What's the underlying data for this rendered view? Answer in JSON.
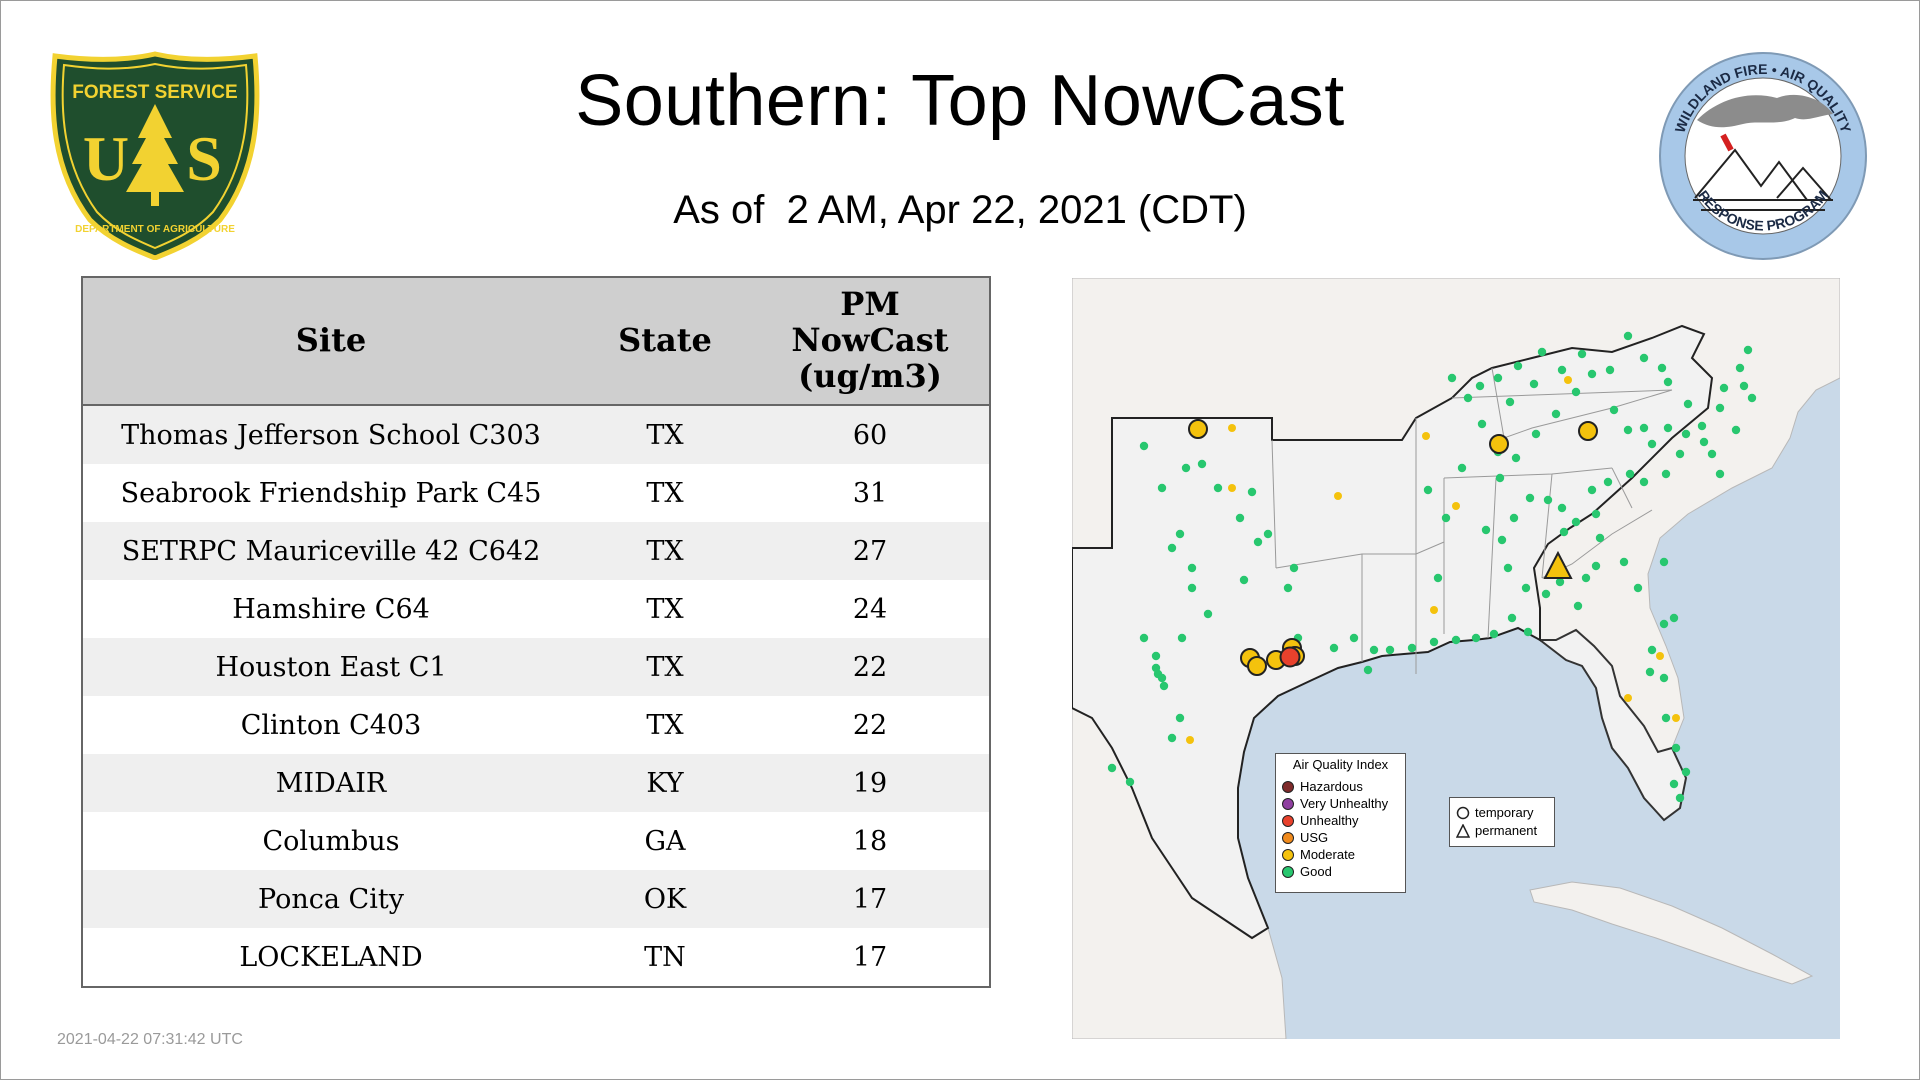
{
  "header": {
    "title": "Southern: Top NowCast",
    "subtitle": "As of  2 AM, Apr 22, 2021 (CDT)"
  },
  "logos": {
    "forest_service": {
      "top_text": "FOREST SERVICE",
      "letters": "US",
      "bottom_text": "DEPARTMENT OF AGRICULTURE",
      "colors": {
        "field": "#1f4e2d",
        "trim": "#f2d231"
      }
    },
    "wildland_fire": {
      "top_text": "WILDLAND FIRE • AIR QUALITY",
      "bottom_text": "RESPONSE PROGRAM",
      "colors": {
        "ring": "#a8c8e8",
        "smoke": "#8c8c8c",
        "flag": "#d42020"
      }
    }
  },
  "table": {
    "headers": {
      "site": "Site",
      "state": "State",
      "pm_line1": "PM",
      "pm_line2": "NowCast",
      "pm_line3": "(ug/m3)"
    },
    "rows": [
      {
        "site": "Thomas Jefferson School C303",
        "state": "TX",
        "pm": "60"
      },
      {
        "site": "Seabrook Friendship Park C45",
        "state": "TX",
        "pm": "31"
      },
      {
        "site": "SETRPC Mauriceville 42 C642",
        "state": "TX",
        "pm": "27"
      },
      {
        "site": "Hamshire C64",
        "state": "TX",
        "pm": "24"
      },
      {
        "site": "Houston East C1",
        "state": "TX",
        "pm": "22"
      },
      {
        "site": "Clinton C403",
        "state": "TX",
        "pm": "22"
      },
      {
        "site": "MIDAIR",
        "state": "KY",
        "pm": "19"
      },
      {
        "site": "Columbus",
        "state": "GA",
        "pm": "18"
      },
      {
        "site": "Ponca City",
        "state": "OK",
        "pm": "17"
      },
      {
        "site": "LOCKELAND",
        "state": "TN",
        "pm": "17"
      }
    ]
  },
  "timestamp": "2021-04-22 07:31:42 UTC",
  "map": {
    "colors": {
      "water": "#c9d9e8",
      "land": "#f3f1ee",
      "region": "#f2f2f2",
      "good": "#28c76f",
      "moderate": "#f4c20d",
      "unhealthy": "#e8412c"
    },
    "legend": {
      "title": "Air Quality Index",
      "items": [
        {
          "label": "Hazardous",
          "color": "#7e2a2a"
        },
        {
          "label": "Very Unhealthy",
          "color": "#8f3fa0"
        },
        {
          "label": "Unhealthy",
          "color": "#e8412c"
        },
        {
          "label": "USG",
          "color": "#f08a1c"
        },
        {
          "label": "Moderate",
          "color": "#f4c20d"
        },
        {
          "label": "Good",
          "color": "#28c76f"
        }
      ]
    },
    "shape_legend": {
      "temporary": "temporary",
      "permanent": "permanent"
    }
  }
}
